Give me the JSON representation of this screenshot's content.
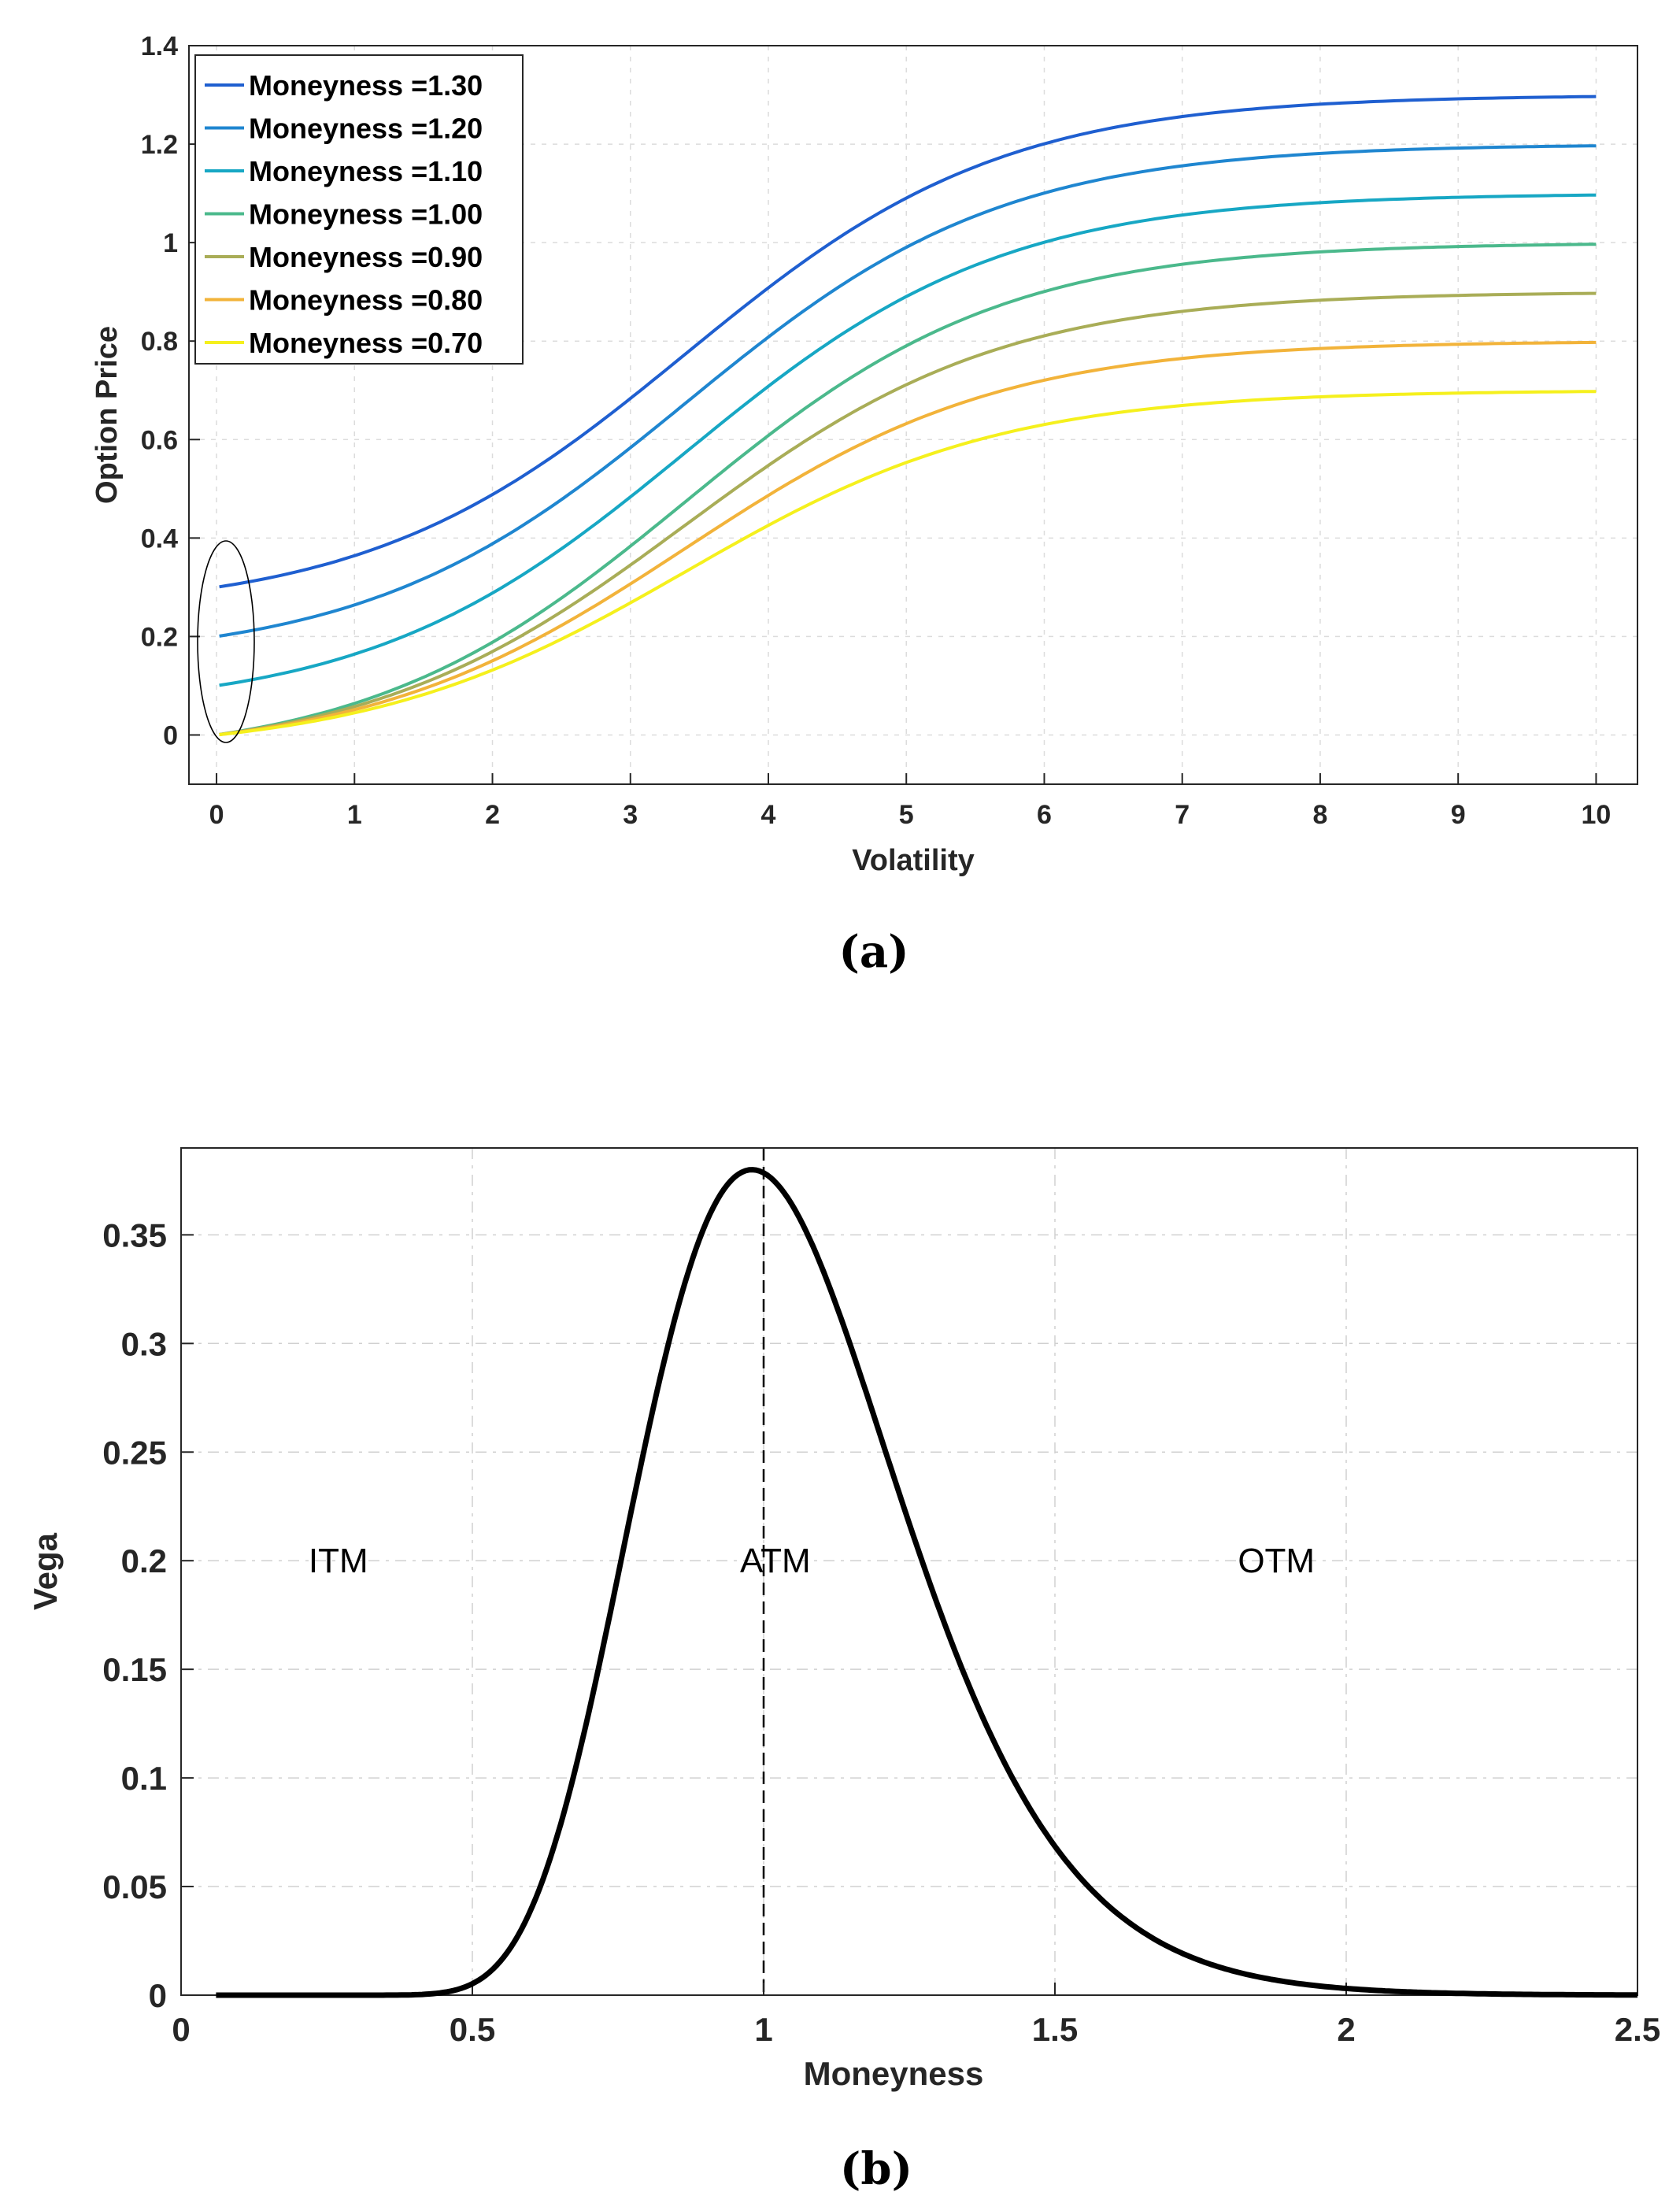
{
  "chart_data": [
    {
      "id": "a",
      "type": "line",
      "panel_label": "(a)",
      "xlabel": "Volatility",
      "ylabel": "Option Price",
      "xlim": [
        -0.2,
        10.3
      ],
      "ylim": [
        -0.1,
        1.4
      ],
      "xticks": [
        0,
        1,
        2,
        3,
        4,
        5,
        6,
        7,
        8,
        9,
        10
      ],
      "xtick_labels": [
        "0",
        "1",
        "2",
        "3",
        "4",
        "5",
        "6",
        "7",
        "8",
        "9",
        "10"
      ],
      "yticks": [
        0,
        0.2,
        0.4,
        0.6,
        0.8,
        1,
        1.2,
        1.4
      ],
      "ytick_labels": [
        "0",
        "0.2",
        "0.4",
        "0.6",
        "0.8",
        "1",
        "1.2",
        "1.4"
      ],
      "grid": true,
      "legend_position": "top-left",
      "annotation": "ellipse around low-volatility region",
      "series": [
        {
          "name": "Moneyness =1.30",
          "moneyness": 1.3,
          "color": "#1f5fd0"
        },
        {
          "name": "Moneyness =1.20",
          "moneyness": 1.2,
          "color": "#1f86d0"
        },
        {
          "name": "Moneyness =1.10",
          "moneyness": 1.1,
          "color": "#17a7c4"
        },
        {
          "name": "Moneyness =1.00",
          "moneyness": 1.0,
          "color": "#4bb98c"
        },
        {
          "name": "Moneyness =0.90",
          "moneyness": 0.9,
          "color": "#a9ad57"
        },
        {
          "name": "Moneyness =0.80",
          "moneyness": 0.8,
          "color": "#f2b33a"
        },
        {
          "name": "Moneyness =0.70",
          "moneyness": 0.7,
          "color": "#f5f01d"
        }
      ]
    },
    {
      "id": "b",
      "type": "line",
      "panel_label": "(b)",
      "xlabel": "Moneyness",
      "ylabel": "Vega",
      "xlim": [
        0,
        2.5
      ],
      "ylim": [
        0,
        0.39
      ],
      "xticks": [
        0,
        0.5,
        1,
        1.5,
        2,
        2.5
      ],
      "xtick_labels": [
        "0",
        "0.5",
        "1",
        "1.5",
        "2",
        "2.5"
      ],
      "yticks": [
        0,
        0.05,
        0.1,
        0.15,
        0.2,
        0.25,
        0.3,
        0.35
      ],
      "ytick_labels": [
        "0",
        "0.05",
        "0.1",
        "0.15",
        "0.2",
        "0.25",
        "0.3",
        "0.35"
      ],
      "grid": true,
      "peak": {
        "x": 0.98,
        "y": 0.38
      },
      "atm_line_x": 1,
      "regions": [
        {
          "label": "ITM",
          "x": 0.27,
          "y": 0.2
        },
        {
          "label": "ATM",
          "x": 1.02,
          "y": 0.2
        },
        {
          "label": "OTM",
          "x": 1.88,
          "y": 0.2
        }
      ],
      "series": [
        {
          "name": "Vega",
          "color": "#000000",
          "x": [
            0.06,
            0.3,
            0.45,
            0.5,
            0.55,
            0.6,
            0.65,
            0.7,
            0.75,
            0.8,
            0.85,
            0.9,
            0.95,
            0.98,
            1.0,
            1.05,
            1.1,
            1.15,
            1.2,
            1.25,
            1.3,
            1.35,
            1.4,
            1.45,
            1.5,
            1.6,
            1.7,
            1.8,
            1.9,
            2.0,
            2.2,
            2.5
          ],
          "y": [
            0.0,
            0.0,
            0.0,
            0.002,
            0.008,
            0.027,
            0.068,
            0.13,
            0.2,
            0.27,
            0.33,
            0.365,
            0.378,
            0.38,
            0.378,
            0.365,
            0.338,
            0.3,
            0.255,
            0.21,
            0.167,
            0.128,
            0.095,
            0.068,
            0.048,
            0.022,
            0.009,
            0.004,
            0.0015,
            0.0006,
            0.0001,
            0.0
          ]
        }
      ]
    }
  ]
}
